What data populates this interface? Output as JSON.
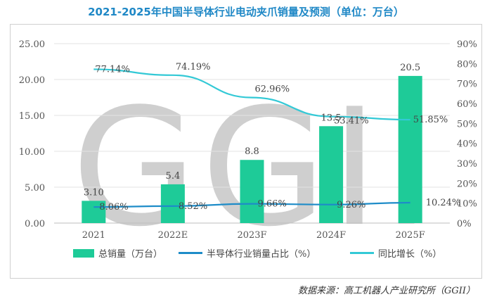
{
  "chart_data": {
    "type": "bar",
    "title": "2021-2025年中国半导体行业电动夹爪销量及预测（单位：万台）",
    "categories": [
      "2021",
      "2022E",
      "2023F",
      "2024F",
      "2025F"
    ],
    "series": [
      {
        "name": "总销量（万台）",
        "kind": "bar",
        "axis": "left",
        "values": [
          3.1,
          5.4,
          8.8,
          13.5,
          20.5
        ],
        "labels": [
          "3.10",
          "5.4",
          "8.8",
          "13.5",
          "20.5"
        ],
        "color": "#1ecb98"
      },
      {
        "name": "半导体行业销量占比（%）",
        "kind": "line",
        "axis": "right",
        "values": [
          8.06,
          8.52,
          9.66,
          9.26,
          10.24
        ],
        "labels": [
          "8.06%",
          "8.52%",
          "9.66%",
          "9.26%",
          "10.24%"
        ],
        "color": "#1e8cc8"
      },
      {
        "name": "同比增长（%）",
        "kind": "line",
        "axis": "right",
        "values": [
          77.14,
          74.19,
          62.96,
          53.41,
          51.85
        ],
        "labels": [
          "77.14%",
          "74.19%",
          "62.96%",
          "53.41%",
          "51.85%"
        ],
        "color": "#33c9d6"
      }
    ],
    "y_left": {
      "ylim": [
        0,
        25
      ],
      "ticks": [
        "0.00",
        "5.00",
        "10.00",
        "15.00",
        "20.00",
        "25.00"
      ]
    },
    "y_right": {
      "ylim": [
        0,
        90
      ],
      "ticks": [
        "0%",
        "10%",
        "20%",
        "30%",
        "40%",
        "50%",
        "60%",
        "70%",
        "80%",
        "90%"
      ]
    },
    "grid": true,
    "legend_position": "bottom",
    "watermark": "GGII"
  },
  "source": "数据来源：高工机器人产业研究所（GGII）"
}
